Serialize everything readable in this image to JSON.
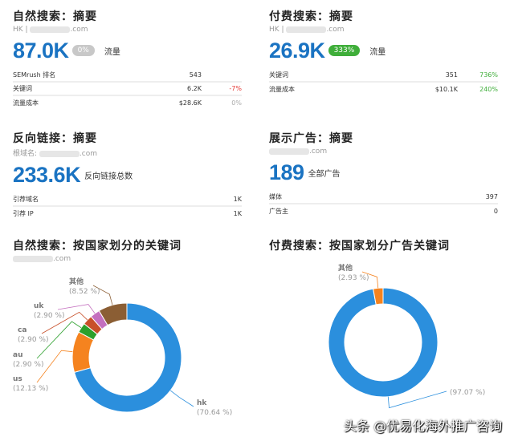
{
  "organic": {
    "title": "自然搜索：摘要",
    "sub_prefix": "HK | ",
    "domain_suffix": ".com",
    "value": "87.0K",
    "badge": "0%",
    "badge_color": "#c8c8c8",
    "unit": "流量",
    "rows": [
      {
        "label": "SEMrush 排名",
        "value": "543",
        "change": ""
      },
      {
        "label": "关键词",
        "value": "6.2K",
        "change": "-7%"
      },
      {
        "label": "流量成本",
        "value": "$28.6K",
        "change": "0%"
      }
    ]
  },
  "paid": {
    "title": "付费搜索：摘要",
    "sub_prefix": "HK | ",
    "domain_suffix": ".com",
    "value": "26.9K",
    "badge": "333%",
    "badge_color": "#3fae3a",
    "unit": "流量",
    "rows": [
      {
        "label": "关键词",
        "value": "351",
        "change": "736%"
      },
      {
        "label": "流量成本",
        "value": "$10.1K",
        "change": "240%"
      }
    ]
  },
  "backlinks": {
    "title": "反向链接：摘要",
    "sub_prefix": "根域名: ",
    "domain_suffix": ".com",
    "value": "233.6K",
    "unit": "反向链接总数",
    "rows": [
      {
        "label": "引荐域名",
        "value": "1K"
      },
      {
        "label": "引荐 IP",
        "value": "1K"
      }
    ]
  },
  "display": {
    "title": "展示广告：摘要",
    "domain_suffix": ".com",
    "value": "189",
    "unit": "全部广告",
    "rows": [
      {
        "label": "媒体",
        "value": "397"
      },
      {
        "label": "广告主",
        "value": "0"
      }
    ]
  },
  "colors": {
    "accent": "#1a73c2",
    "negative": "#e53935",
    "positive": "#3fae3a",
    "neutral": "#aaaaaa"
  },
  "chart_data": [
    {
      "type": "pie",
      "title": "自然搜索：按国家划分的关键词",
      "subtitle_suffix": ".com",
      "slices": [
        {
          "label": "hk",
          "value": 70.64,
          "pct": "(70.64 %)",
          "color": "#2b8fdd"
        },
        {
          "label": "us",
          "value": 12.13,
          "pct": "(12.13 %)",
          "color": "#f5831f"
        },
        {
          "label": "au",
          "value": 2.9,
          "pct": "(2.90 %)",
          "color": "#2ca02c"
        },
        {
          "label": "ca",
          "value": 2.9,
          "pct": "(2.90 %)",
          "color": "#c8502a"
        },
        {
          "label": "uk",
          "value": 2.9,
          "pct": "(2.90 %)",
          "color": "#c46fbf"
        },
        {
          "label": "其他",
          "value": 8.52,
          "pct": "(8.52 %)",
          "color": "#8b5e34"
        }
      ]
    },
    {
      "type": "pie",
      "title": "付费搜索：按国家划分广告关键词",
      "slices": [
        {
          "label": "",
          "value": 97.07,
          "pct": "(97.07 %)",
          "color": "#2b8fdd"
        },
        {
          "label": "其他",
          "value": 2.93,
          "pct": "(2.93 %)",
          "color": "#f5831f"
        }
      ]
    }
  ],
  "watermark": "头条 @优易化海外推广咨询"
}
